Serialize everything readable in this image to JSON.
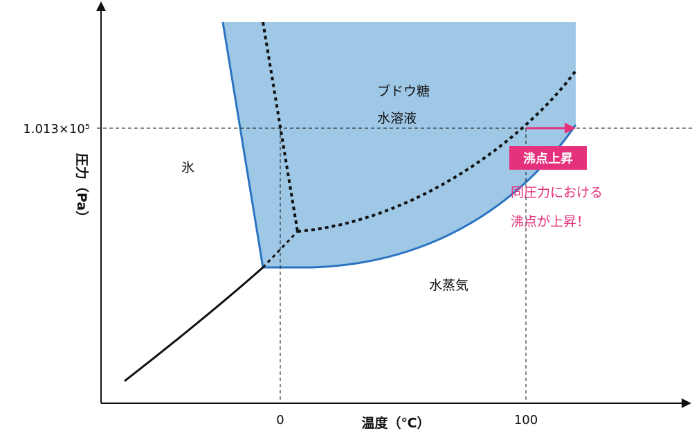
{
  "axes": {
    "y_label": "圧力（Pa）",
    "x_label": "温度（℃）",
    "y_tick": "1.013×10⁵",
    "x_ticks": [
      "0",
      "100"
    ]
  },
  "regions": {
    "ice": "氷",
    "solution_line1": "ブドウ糖",
    "solution_line2": "水溶液",
    "vapor": "水蒸気"
  },
  "annotation": {
    "badge": "沸点上昇",
    "note_line1": "同圧力における",
    "note_line2": "沸点が上昇！"
  },
  "colors": {
    "solution_fill": "#9fc8e6",
    "solution_edge": "#2a73c2",
    "accent": "#e5307c",
    "ink": "#111111"
  }
}
